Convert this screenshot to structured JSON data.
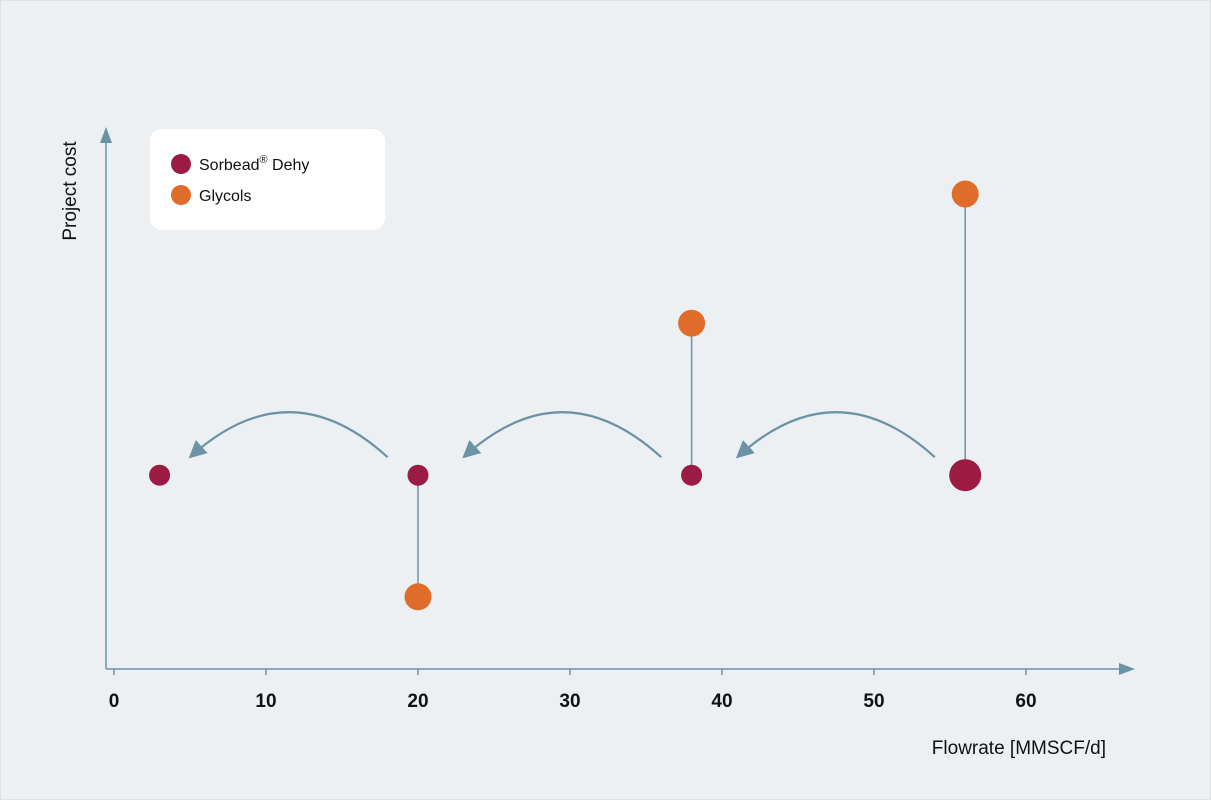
{
  "chart_data": {
    "type": "scatter",
    "xlabel": "Flowrate [MMSCF/d]",
    "ylabel": "Project cost",
    "xlim": [
      0,
      70
    ],
    "x_ticks": [
      0,
      10,
      20,
      30,
      40,
      50,
      60
    ],
    "y_ticks_shown": false,
    "legend_position": "top-left",
    "series": [
      {
        "name": "Sorbead® Dehy",
        "color": "#9b1b44",
        "points": [
          {
            "x": 3,
            "y": 0.51,
            "size": "small"
          },
          {
            "x": 20,
            "y": 0.51,
            "size": "small"
          },
          {
            "x": 38,
            "y": 0.51,
            "size": "small"
          },
          {
            "x": 56,
            "y": 0.51,
            "size": "large"
          }
        ]
      },
      {
        "name": "Glycols",
        "color": "#e06c2b",
        "points": [
          {
            "x": 20,
            "y": 0.19,
            "size": "medium"
          },
          {
            "x": 38,
            "y": 0.91,
            "size": "medium"
          },
          {
            "x": 56,
            "y": 1.25,
            "size": "medium"
          }
        ]
      }
    ],
    "connectors": [
      {
        "x": 20,
        "y_from": 0.51,
        "y_to": 0.19
      },
      {
        "x": 38,
        "y_from": 0.51,
        "y_to": 0.91
      },
      {
        "x": 56,
        "y_from": 0.51,
        "y_to": 1.25
      }
    ],
    "arrows": [
      {
        "from_x": 54,
        "to_x": 41
      },
      {
        "from_x": 36,
        "to_x": 23
      },
      {
        "from_x": 18,
        "to_x": 5
      }
    ],
    "legend": [
      {
        "label": "Sorbead",
        "superscript": "®",
        "label_suffix": " Dehy",
        "color": "#9b1b44"
      },
      {
        "label": "Glycols",
        "superscript": "",
        "label_suffix": "",
        "color": "#e06c2b"
      }
    ],
    "axis_color": "#6b93a6",
    "arrow_color": "#6b93a6"
  }
}
